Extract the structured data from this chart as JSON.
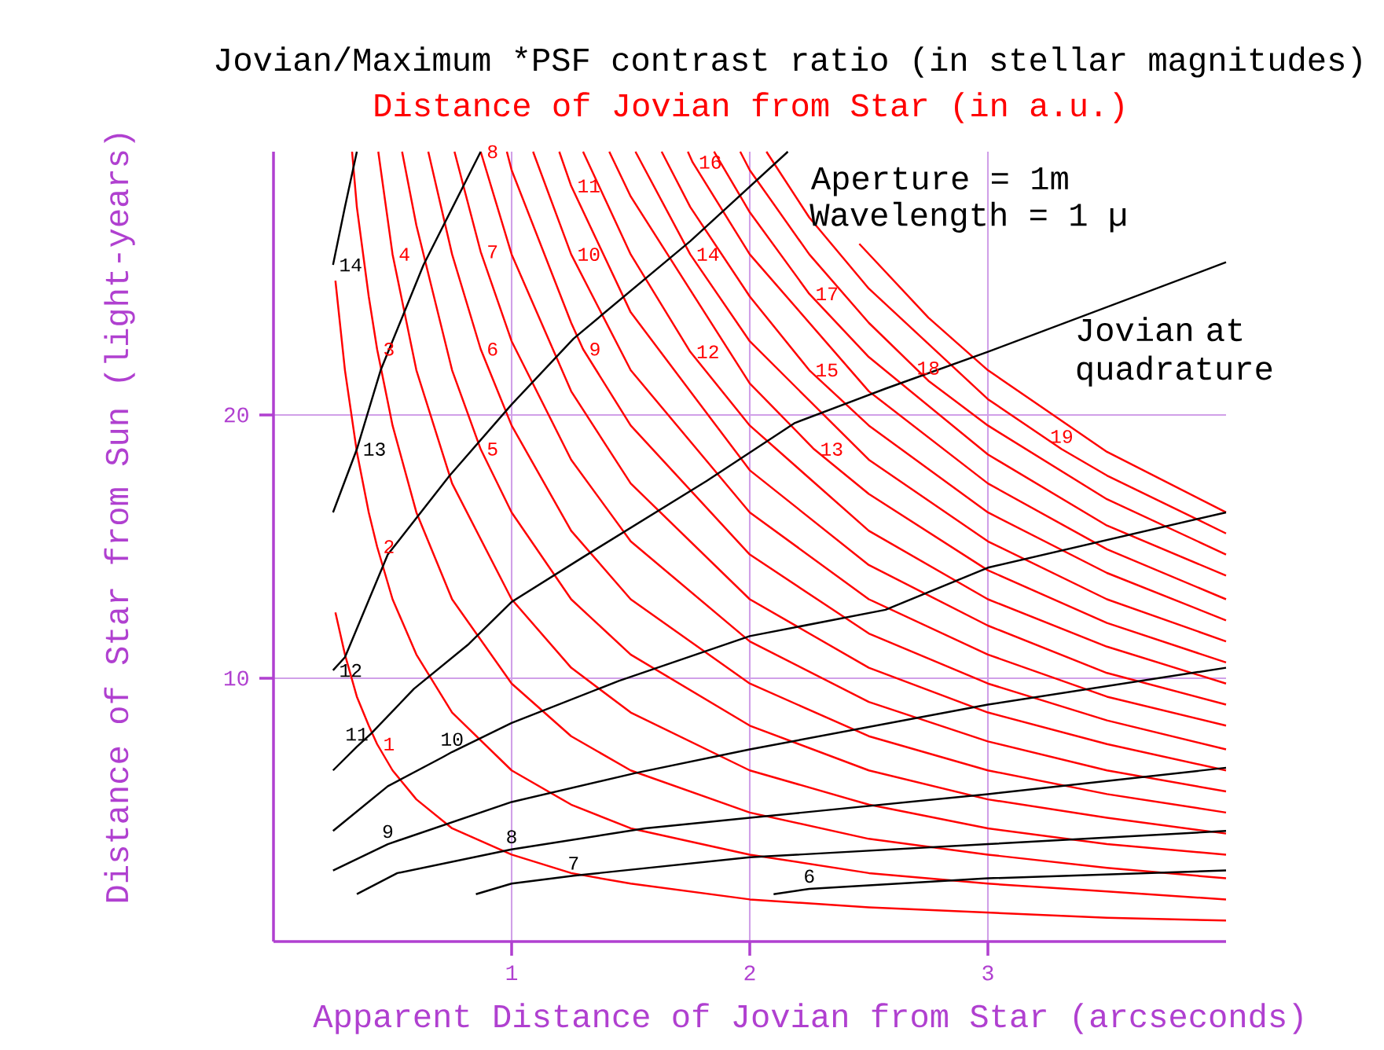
{
  "chart_data": {
    "type": "line",
    "title": "Jovian/Maximum *PSF contrast ratio (in stellar magnitudes)",
    "subtitle": "Distance of Jovian from Star (in a.u.)",
    "xlabel": "Apparent Distance of Jovian from Star (arcseconds)",
    "ylabel": "Distance of Star from Sun (light-years)",
    "xlim": [
      0,
      4
    ],
    "ylim": [
      0,
      30
    ],
    "xticks": [
      1,
      2,
      3
    ],
    "yticks": [
      10,
      20
    ],
    "grid": true,
    "marker": "none",
    "series": [
      {
        "color": "#ff0000",
        "x": [
          0.26,
          0.3,
          0.35,
          0.4,
          0.435,
          0.5,
          0.6,
          0.75,
          1,
          1.25,
          1.5,
          2,
          2.5,
          3,
          3.5,
          4
        ],
        "values": [
          12.5,
          10.9,
          9.3,
          8.2,
          7.5,
          6.5,
          5.4,
          4.3,
          3.3,
          2.6,
          2.2,
          1.6,
          1.3,
          1.1,
          0.9,
          0.8
        ]
      },
      {
        "color": "#ff0000",
        "x": [
          0.26,
          0.3,
          0.35,
          0.4,
          0.435,
          0.5,
          0.6,
          0.75,
          1,
          1.25,
          1.5,
          2,
          2.5,
          3,
          3.5,
          4
        ],
        "values": [
          25.1,
          21.7,
          18.6,
          16.3,
          15.0,
          13.0,
          10.9,
          8.7,
          6.5,
          5.2,
          4.3,
          3.3,
          2.6,
          2.2,
          1.9,
          1.6
        ]
      },
      {
        "color": "#ff0000",
        "x": [
          0.33,
          0.35,
          0.4,
          0.435,
          0.5,
          0.6,
          0.75,
          1,
          1.25,
          1.5,
          2,
          2.5,
          3,
          3.5,
          4
        ],
        "values": [
          30,
          27.9,
          24.5,
          22.5,
          19.6,
          16.3,
          13.0,
          9.8,
          7.8,
          6.5,
          4.9,
          3.9,
          3.3,
          2.8,
          2.4
        ]
      },
      {
        "color": "#ff0000",
        "x": [
          0.44,
          0.5,
          0.6,
          0.75,
          1,
          1.25,
          1.5,
          2,
          2.5,
          3,
          3.5,
          4
        ],
        "values": [
          30,
          26.1,
          21.7,
          17.4,
          13.0,
          10.4,
          8.7,
          6.5,
          5.2,
          4.3,
          3.7,
          3.3
        ]
      },
      {
        "color": "#ff0000",
        "x": [
          0.54,
          0.6,
          0.75,
          0.87,
          1,
          1.25,
          1.5,
          2,
          2.5,
          3,
          3.5,
          4
        ],
        "values": [
          30,
          27.2,
          21.7,
          18.7,
          16.3,
          13.0,
          10.9,
          8.2,
          6.5,
          5.4,
          4.7,
          4.1
        ]
      },
      {
        "color": "#ff0000",
        "x": [
          0.65,
          0.75,
          0.87,
          1,
          1.25,
          1.5,
          2,
          2.5,
          3,
          3.5,
          4
        ],
        "values": [
          30,
          26.1,
          22.5,
          19.6,
          15.6,
          13.0,
          9.8,
          7.8,
          6.5,
          5.6,
          4.9
        ]
      },
      {
        "color": "#ff0000",
        "x": [
          0.76,
          0.87,
          1,
          1.25,
          1.5,
          2,
          2.5,
          3,
          3.5,
          4
        ],
        "values": [
          30,
          26.2,
          22.8,
          18.3,
          15.2,
          11.4,
          9.1,
          7.6,
          6.5,
          5.7
        ]
      },
      {
        "color": "#ff0000",
        "x": [
          0.87,
          1,
          1.25,
          1.5,
          2,
          2.5,
          3,
          3.5,
          4
        ],
        "values": [
          30,
          26.1,
          20.9,
          17.4,
          13.0,
          10.4,
          8.7,
          7.5,
          6.5
        ]
      },
      {
        "color": "#ff0000",
        "x": [
          0.98,
          1,
          1.25,
          1.3,
          1.5,
          2,
          2.5,
          3,
          3.5,
          4
        ],
        "values": [
          30,
          29.3,
          23.5,
          22.5,
          19.6,
          14.7,
          11.7,
          9.8,
          8.4,
          7.3
        ]
      },
      {
        "color": "#ff0000",
        "x": [
          1.09,
          1.25,
          1.5,
          2,
          2.5,
          3,
          3.5,
          4
        ],
        "values": [
          30,
          26.1,
          21.7,
          16.3,
          13.0,
          10.9,
          9.3,
          8.2
        ]
      },
      {
        "color": "#ff0000",
        "x": [
          1.2,
          1.25,
          1.5,
          2,
          2.5,
          3,
          3.5,
          4
        ],
        "values": [
          30,
          28.7,
          23.9,
          17.9,
          14.3,
          12.0,
          10.2,
          9.0
        ]
      },
      {
        "color": "#ff0000",
        "x": [
          1.3,
          1.5,
          1.75,
          2,
          2.5,
          3,
          3.5,
          4
        ],
        "values": [
          30,
          26.1,
          22.4,
          19.6,
          15.6,
          13.0,
          11.2,
          9.8
        ]
      },
      {
        "color": "#ff0000",
        "x": [
          1.41,
          1.5,
          2,
          2.27,
          2.5,
          3,
          3.5,
          4
        ],
        "values": [
          30,
          28.3,
          21.2,
          18.7,
          17.0,
          14.1,
          12.1,
          10.6
        ]
      },
      {
        "color": "#ff0000",
        "x": [
          1.52,
          1.75,
          2,
          2.5,
          3,
          3.5,
          4
        ],
        "values": [
          30,
          26.1,
          22.8,
          18.3,
          15.2,
          13.0,
          11.4
        ]
      },
      {
        "color": "#ff0000",
        "x": [
          1.63,
          1.75,
          2,
          2.25,
          2.5,
          3,
          3.5,
          4
        ],
        "values": [
          30,
          27.9,
          24.5,
          21.7,
          19.6,
          16.3,
          14.0,
          12.2
        ]
      },
      {
        "color": "#ff0000",
        "x": [
          1.74,
          1.76,
          2,
          2.5,
          3,
          3.5,
          4
        ],
        "values": [
          30,
          29.6,
          26.1,
          20.9,
          17.4,
          14.9,
          13.0
        ]
      },
      {
        "color": "#ff0000",
        "x": [
          1.85,
          2,
          2.25,
          2.5,
          3,
          3.5,
          4
        ],
        "values": [
          30,
          27.7,
          24.6,
          22.2,
          18.5,
          15.8,
          13.9
        ]
      },
      {
        "color": "#ff0000",
        "x": [
          1.96,
          2,
          2.25,
          2.5,
          2.75,
          3,
          3.5,
          4
        ],
        "values": [
          30,
          29.3,
          26.1,
          23.5,
          21.3,
          19.6,
          16.8,
          14.7
        ]
      },
      {
        "color": "#ff0000",
        "x": [
          2.07,
          2.25,
          2.5,
          3,
          3.31,
          3.5,
          4
        ],
        "values": [
          30,
          27.5,
          24.8,
          20.6,
          18.7,
          17.7,
          15.5
        ]
      },
      {
        "color": "#ff0000",
        "x": [
          2.46,
          2.75,
          3,
          3.5,
          4
        ],
        "values": [
          26.5,
          23.7,
          21.7,
          18.6,
          16.3
        ]
      },
      {
        "color": "#000000",
        "x": [
          0.25,
          0.3,
          0.35
        ],
        "values": [
          25.7,
          27.9,
          30
        ]
      },
      {
        "color": "#000000",
        "x": [
          0.25,
          0.35,
          0.45,
          0.63,
          0.87
        ],
        "values": [
          16.3,
          18.7,
          21.7,
          25.7,
          30
        ]
      },
      {
        "color": "#000000",
        "x": [
          0.25,
          0.3,
          0.48,
          0.74,
          1.0,
          1.26,
          1.75,
          2.16
        ],
        "values": [
          10.3,
          10.8,
          14.7,
          17.7,
          20.4,
          22.9,
          26.6,
          30
        ]
      },
      {
        "color": "#000000",
        "x": [
          0.25,
          0.35,
          0.41,
          0.59,
          0.82,
          1.0,
          1.3,
          1.82,
          2.19,
          2.57,
          3.0,
          4.0
        ],
        "values": [
          6.5,
          7.4,
          7.9,
          9.6,
          11.3,
          12.9,
          14.6,
          17.5,
          19.7,
          21.0,
          22.4,
          25.8
        ]
      },
      {
        "color": "#000000",
        "x": [
          0.25,
          0.48,
          0.71,
          0.75,
          1.0,
          1.45,
          2.0,
          2.57,
          3.0,
          4.0
        ],
        "values": [
          4.2,
          5.9,
          7.0,
          7.2,
          8.3,
          9.9,
          11.6,
          12.6,
          14.2,
          16.3
        ]
      },
      {
        "color": "#000000",
        "x": [
          0.25,
          0.48,
          1.0,
          1.52,
          2.0,
          3.0,
          4.0
        ],
        "values": [
          2.7,
          3.7,
          5.3,
          6.4,
          7.3,
          9.0,
          10.4
        ]
      },
      {
        "color": "#000000",
        "x": [
          0.35,
          0.52,
          1.0,
          1.56,
          2.0,
          3.0,
          4.0
        ],
        "values": [
          1.8,
          2.6,
          3.5,
          4.3,
          4.7,
          5.6,
          6.6
        ]
      },
      {
        "color": "#000000",
        "x": [
          0.85,
          1.0,
          1.26,
          2.0,
          3.0,
          4.0
        ],
        "values": [
          1.8,
          2.2,
          2.5,
          3.2,
          3.7,
          4.2
        ]
      },
      {
        "color": "#000000",
        "x": [
          2.1,
          2.25,
          3.0,
          4.0
        ],
        "values": [
          1.8,
          2.0,
          2.4,
          2.7
        ]
      }
    ],
    "annotations": [
      "Aperture = 1m",
      "Wavelength = 1 µ",
      "Jovian at quadrature",
      {
        "text": "1",
        "x": 0.435,
        "y": 7.5
      },
      {
        "text": "2",
        "x": 0.435,
        "y": 15.0
      },
      {
        "text": "3",
        "x": 0.435,
        "y": 22.5
      },
      {
        "text": "4",
        "x": 0.5,
        "y": 26.1
      },
      {
        "text": "5",
        "x": 0.87,
        "y": 18.7
      },
      {
        "text": "6",
        "x": 0.87,
        "y": 22.5
      },
      {
        "text": "7",
        "x": 0.87,
        "y": 26.2
      },
      {
        "text": "8",
        "x": 0.87,
        "y": 30
      },
      {
        "text": "9",
        "x": 1.3,
        "y": 22.5
      },
      {
        "text": "10",
        "x": 1.25,
        "y": 26.1
      },
      {
        "text": "11",
        "x": 1.25,
        "y": 28.7
      },
      {
        "text": "12",
        "x": 1.75,
        "y": 22.4
      },
      {
        "text": "13",
        "x": 2.27,
        "y": 18.7
      },
      {
        "text": "14",
        "x": 1.75,
        "y": 26.1
      },
      {
        "text": "15",
        "x": 2.25,
        "y": 21.7
      },
      {
        "text": "16",
        "x": 1.76,
        "y": 29.6
      },
      {
        "text": "17",
        "x": 2.25,
        "y": 24.6
      },
      {
        "text": "18",
        "x": 2.75,
        "y": 21.3
      },
      {
        "text": "19",
        "x": 3.31,
        "y": 18.7
      },
      {
        "text": "14",
        "x": 0.25,
        "y": 25.7
      },
      {
        "text": "13",
        "x": 0.35,
        "y": 18.7
      },
      {
        "text": "12",
        "x": 0.25,
        "y": 10.3
      },
      {
        "text": "11",
        "x": 0.35,
        "y": 7.4
      },
      {
        "text": "10",
        "x": 0.75,
        "y": 7.2
      },
      {
        "text": "9",
        "x": 0.48,
        "y": 3.7
      },
      {
        "text": "8",
        "x": 1.0,
        "y": 3.5
      },
      {
        "text": "7",
        "x": 1.26,
        "y": 2.5
      },
      {
        "text": "6",
        "x": 2.25,
        "y": 2.0
      }
    ]
  }
}
